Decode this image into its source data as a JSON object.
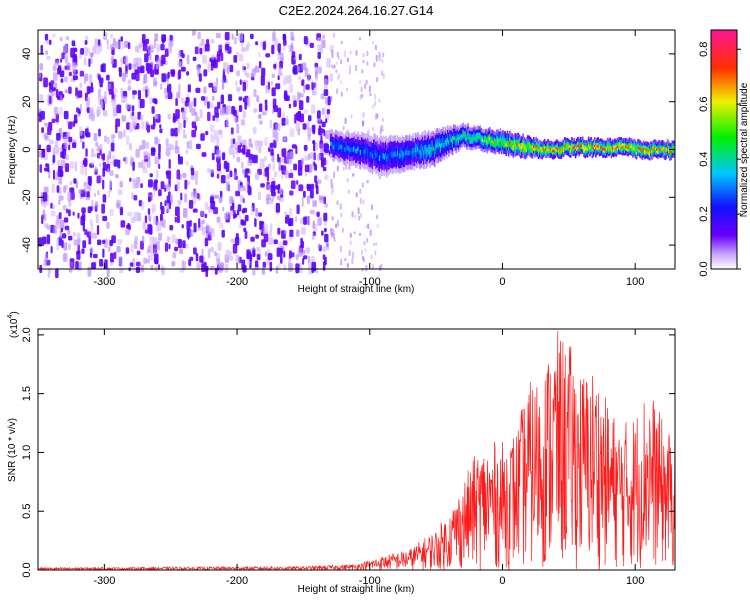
{
  "title": "C2E2.2024.264.16.27.G14",
  "colors": {
    "spectrogram_noise": "#7a2ef0",
    "snr_line": "#ff1a1a"
  },
  "chart_data": [
    {
      "type": "heatmap",
      "name": "spectrogram",
      "title": "C2E2.2024.264.16.27.G14",
      "xlabel": "Height of straight line (km)",
      "ylabel": "Frequency (Hz)",
      "xlim": [
        -350,
        130
      ],
      "ylim": [
        -50,
        50
      ],
      "x_ticks": [
        -300,
        -200,
        -100,
        0,
        100
      ],
      "y_ticks": [
        -40,
        -20,
        0,
        20,
        40
      ],
      "colorbar": {
        "label": "Normalized spectral amplitude",
        "range": [
          0.0,
          0.87
        ],
        "ticks": [
          "0.0",
          "0.2",
          "0.4",
          "0.6",
          "0.8"
        ],
        "colormap": "white-violet-blue-cyan-green-yellow-red-magenta"
      },
      "noise_region": {
        "x_range": [
          -350,
          -130
        ],
        "freq_range": [
          -50,
          50
        ],
        "amplitude": 0.05
      },
      "sparse_region": {
        "x_range": [
          -130,
          -90
        ],
        "amplitude": 0.02
      },
      "signal_band": [
        {
          "x": -130,
          "freq_center": 2,
          "half_width": 5,
          "amplitude": 0.32
        },
        {
          "x": -110,
          "freq_center": 0,
          "half_width": 6,
          "amplitude": 0.3
        },
        {
          "x": -90,
          "freq_center": -3,
          "half_width": 7,
          "amplitude": 0.3
        },
        {
          "x": -70,
          "freq_center": -1,
          "half_width": 6,
          "amplitude": 0.35
        },
        {
          "x": -50,
          "freq_center": 1,
          "half_width": 6,
          "amplitude": 0.4
        },
        {
          "x": -30,
          "freq_center": 6,
          "half_width": 4,
          "amplitude": 0.42
        },
        {
          "x": -10,
          "freq_center": 4,
          "half_width": 4,
          "amplitude": 0.55
        },
        {
          "x": 10,
          "freq_center": 2,
          "half_width": 4,
          "amplitude": 0.65
        },
        {
          "x": 30,
          "freq_center": 0,
          "half_width": 3,
          "amplitude": 0.7
        },
        {
          "x": 50,
          "freq_center": 1,
          "half_width": 3,
          "amplitude": 0.72
        },
        {
          "x": 70,
          "freq_center": 1,
          "half_width": 3,
          "amplitude": 0.75
        },
        {
          "x": 90,
          "freq_center": 1,
          "half_width": 3,
          "amplitude": 0.72
        },
        {
          "x": 110,
          "freq_center": 0,
          "half_width": 3,
          "amplitude": 0.7
        },
        {
          "x": 130,
          "freq_center": 0,
          "half_width": 3,
          "amplitude": 0.68
        }
      ]
    },
    {
      "type": "line",
      "name": "snr",
      "xlabel": "Height of straight line (km)",
      "ylabel": "SNR (10 * v/v)",
      "y_multiplier_label": "(x10",
      "y_multiplier_exp": "4",
      "y_multiplier_close": ")",
      "xlim": [
        -350,
        130
      ],
      "ylim": [
        0,
        2.05
      ],
      "x_ticks": [
        -300,
        -200,
        -100,
        0,
        100
      ],
      "y_ticks": [
        "0.0",
        "0.5",
        "1.0",
        "1.5",
        "2.0"
      ],
      "series": [
        {
          "envelope": [
            {
              "x": -350,
              "y": 0.02
            },
            {
              "x": -150,
              "y": 0.03
            },
            {
              "x": -110,
              "y": 0.05
            },
            {
              "x": -90,
              "y": 0.12
            },
            {
              "x": -70,
              "y": 0.18
            },
            {
              "x": -50,
              "y": 0.35
            },
            {
              "x": -40,
              "y": 0.5
            },
            {
              "x": -30,
              "y": 0.75
            },
            {
              "x": -20,
              "y": 1.0
            },
            {
              "x": -10,
              "y": 1.1
            },
            {
              "x": 0,
              "y": 1.1
            },
            {
              "x": 10,
              "y": 1.2
            },
            {
              "x": 20,
              "y": 1.6
            },
            {
              "x": 30,
              "y": 1.7
            },
            {
              "x": 40,
              "y": 2.05
            },
            {
              "x": 50,
              "y": 1.95
            },
            {
              "x": 60,
              "y": 1.7
            },
            {
              "x": 70,
              "y": 1.75
            },
            {
              "x": 80,
              "y": 1.4
            },
            {
              "x": 90,
              "y": 1.25
            },
            {
              "x": 100,
              "y": 1.35
            },
            {
              "x": 110,
              "y": 1.6
            },
            {
              "x": 120,
              "y": 1.3
            },
            {
              "x": 130,
              "y": 1.1
            }
          ]
        }
      ]
    }
  ]
}
